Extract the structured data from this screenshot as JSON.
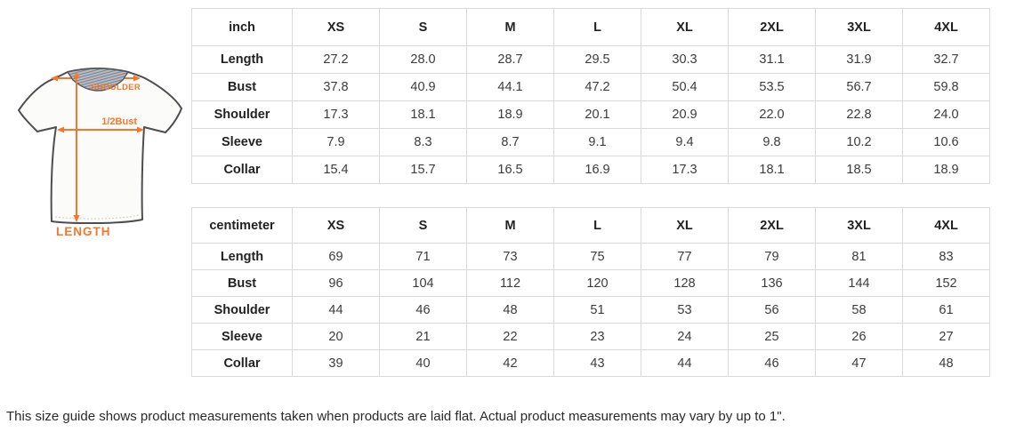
{
  "diagram": {
    "shoulder_label": "SHOULDER",
    "half_bust_label": "1/2Bust",
    "length_label": "LENGTH"
  },
  "colors": {
    "accent_orange": "#f5772b",
    "table_border": "#d9d9d9"
  },
  "tables": [
    {
      "unit": "inch",
      "columns": [
        "XS",
        "S",
        "M",
        "L",
        "XL",
        "2XL",
        "3XL",
        "4XL"
      ],
      "rows": [
        {
          "label": "Length",
          "values": [
            "27.2",
            "28.0",
            "28.7",
            "29.5",
            "30.3",
            "31.1",
            "31.9",
            "32.7"
          ]
        },
        {
          "label": "Bust",
          "values": [
            "37.8",
            "40.9",
            "44.1",
            "47.2",
            "50.4",
            "53.5",
            "56.7",
            "59.8"
          ]
        },
        {
          "label": "Shoulder",
          "values": [
            "17.3",
            "18.1",
            "18.9",
            "20.1",
            "20.9",
            "22.0",
            "22.8",
            "24.0"
          ]
        },
        {
          "label": "Sleeve",
          "values": [
            "7.9",
            "8.3",
            "8.7",
            "9.1",
            "9.4",
            "9.8",
            "10.2",
            "10.6"
          ]
        },
        {
          "label": "Collar",
          "values": [
            "15.4",
            "15.7",
            "16.5",
            "16.9",
            "17.3",
            "18.1",
            "18.5",
            "18.9"
          ]
        }
      ]
    },
    {
      "unit": "centimeter",
      "columns": [
        "XS",
        "S",
        "M",
        "L",
        "XL",
        "2XL",
        "3XL",
        "4XL"
      ],
      "rows": [
        {
          "label": "Length",
          "values": [
            "69",
            "71",
            "73",
            "75",
            "77",
            "79",
            "81",
            "83"
          ]
        },
        {
          "label": "Bust",
          "values": [
            "96",
            "104",
            "112",
            "120",
            "128",
            "136",
            "144",
            "152"
          ]
        },
        {
          "label": "Shoulder",
          "values": [
            "44",
            "46",
            "48",
            "51",
            "53",
            "56",
            "58",
            "61"
          ]
        },
        {
          "label": "Sleeve",
          "values": [
            "20",
            "21",
            "22",
            "23",
            "24",
            "25",
            "26",
            "27"
          ]
        },
        {
          "label": "Collar",
          "values": [
            "39",
            "40",
            "42",
            "43",
            "44",
            "46",
            "47",
            "48"
          ]
        }
      ]
    }
  ],
  "footer": {
    "note": "This size guide shows product measurements taken when products are laid flat. Actual product measurements may vary by up to 1\"."
  }
}
